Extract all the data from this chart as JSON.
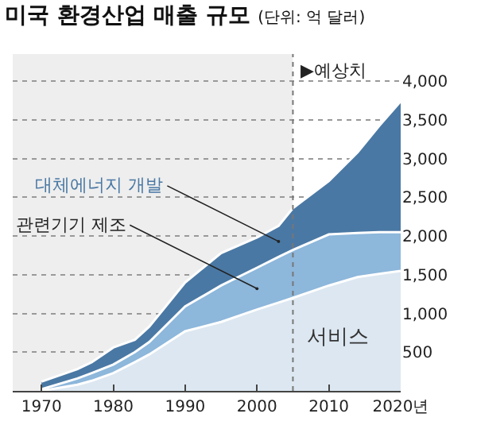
{
  "chart_data": {
    "type": "area",
    "title": "미국 환경산업 매출 규모",
    "subtitle": "(단위: 억 달러)",
    "x": [
      1970,
      1975,
      1977,
      1980,
      1983,
      1985,
      1990,
      1995,
      2000,
      2003,
      2005,
      2010,
      2014,
      2017,
      2020
    ],
    "stacked": true,
    "series": [
      {
        "name": "서비스",
        "color": "#dce7f1",
        "values": [
          0,
          80,
          130,
          230,
          370,
          470,
          770,
          890,
          1050,
          1140,
          1200,
          1360,
          1470,
          1510,
          1550
        ]
      },
      {
        "name": "관련기기 제조",
        "color": "#8db7db",
        "values": [
          20,
          80,
          100,
          110,
          130,
          160,
          320,
          470,
          540,
          590,
          620,
          660,
          570,
          540,
          500
        ]
      },
      {
        "name": "대체에너지 개발",
        "color": "#4a78a4",
        "values": [
          100,
          120,
          140,
          220,
          160,
          200,
          310,
          420,
          390,
          400,
          540,
          690,
          1040,
          1370,
          1690
        ]
      }
    ],
    "xlim": [
      1966,
      2020
    ],
    "xticks": [
      1970,
      1980,
      1990,
      2000,
      2010,
      {
        "value": 2020,
        "label": "2020년"
      }
    ],
    "ylim": [
      0,
      4350
    ],
    "yticks": [
      500,
      {
        "value": 1000,
        "label": "1,000"
      },
      {
        "value": 1500,
        "label": "1,500"
      },
      {
        "value": 2000,
        "label": "2,000"
      },
      {
        "value": 2500,
        "label": "2,500"
      },
      {
        "value": 3000,
        "label": "3,000"
      },
      {
        "value": 3500,
        "label": "3,500"
      },
      {
        "value": 4000,
        "label": "4,000"
      }
    ],
    "grid": "y",
    "legend": false,
    "bands": [
      {
        "axis": "x",
        "from": 2005,
        "to": 2020,
        "label": "▶예상치",
        "color": "#ffffff"
      }
    ],
    "ref_lines": [
      {
        "axis": "x",
        "value": 2005,
        "line_style": "dotted",
        "color": "#777777"
      }
    ]
  }
}
